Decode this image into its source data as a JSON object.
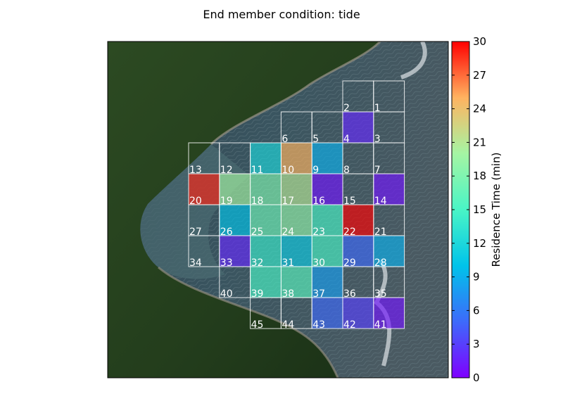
{
  "chart_data": {
    "type": "heatmap",
    "title": "End member condition: tide",
    "colorbar": {
      "label": "Residence Time (min)",
      "range": [
        0,
        30
      ],
      "ticks": [
        0,
        3,
        6,
        9,
        12,
        15,
        18,
        21,
        24,
        27,
        30
      ],
      "colormap": "rainbow",
      "colors": [
        "#7f00ff",
        "#3d6afb",
        "#00c3ea",
        "#49f5c6",
        "#a5f5a3",
        "#ffb360",
        "#ff0000"
      ]
    },
    "background": "satellite image of coastline",
    "grid_columns": 7,
    "grid_rows": 8,
    "cells": [
      {
        "id": "1",
        "row": 0,
        "col": 6,
        "value": null
      },
      {
        "id": "2",
        "row": 0,
        "col": 5,
        "value": null
      },
      {
        "id": "3",
        "row": 1,
        "col": 6,
        "value": null
      },
      {
        "id": "4",
        "row": 1,
        "col": 5,
        "value": 2
      },
      {
        "id": "5",
        "row": 1,
        "col": 4,
        "value": null
      },
      {
        "id": "6",
        "row": 1,
        "col": 3,
        "value": null
      },
      {
        "id": "7",
        "row": 2,
        "col": 6,
        "value": null
      },
      {
        "id": "8",
        "row": 2,
        "col": 5,
        "value": null
      },
      {
        "id": "9",
        "row": 2,
        "col": 4,
        "value": 9
      },
      {
        "id": "10",
        "row": 2,
        "col": 3,
        "value": 25
      },
      {
        "id": "11",
        "row": 2,
        "col": 2,
        "value": 12
      },
      {
        "id": "12",
        "row": 2,
        "col": 1,
        "value": null
      },
      {
        "id": "13",
        "row": 2,
        "col": 0,
        "value": null
      },
      {
        "id": "14",
        "row": 3,
        "col": 6,
        "value": 1
      },
      {
        "id": "15",
        "row": 3,
        "col": 5,
        "value": null
      },
      {
        "id": "16",
        "row": 3,
        "col": 4,
        "value": 1
      },
      {
        "id": "17",
        "row": 3,
        "col": 3,
        "value": 21
      },
      {
        "id": "18",
        "row": 3,
        "col": 2,
        "value": 18
      },
      {
        "id": "19",
        "row": 3,
        "col": 1,
        "value": 20
      },
      {
        "id": "20",
        "row": 3,
        "col": 0,
        "value": 29
      },
      {
        "id": "21",
        "row": 4,
        "col": 6,
        "value": null
      },
      {
        "id": "22",
        "row": 4,
        "col": 5,
        "value": 30
      },
      {
        "id": "23",
        "row": 4,
        "col": 4,
        "value": 15
      },
      {
        "id": "24",
        "row": 4,
        "col": 3,
        "value": 19
      },
      {
        "id": "25",
        "row": 4,
        "col": 2,
        "value": 17
      },
      {
        "id": "26",
        "row": 4,
        "col": 1,
        "value": 10
      },
      {
        "id": "27",
        "row": 4,
        "col": 0,
        "value": null
      },
      {
        "id": "28",
        "row": 5,
        "col": 6,
        "value": 9
      },
      {
        "id": "29",
        "row": 5,
        "col": 5,
        "value": 5
      },
      {
        "id": "30",
        "row": 5,
        "col": 4,
        "value": 15
      },
      {
        "id": "31",
        "row": 5,
        "col": 3,
        "value": 11
      },
      {
        "id": "32",
        "row": 5,
        "col": 2,
        "value": 14
      },
      {
        "id": "33",
        "row": 5,
        "col": 1,
        "value": 2
      },
      {
        "id": "34",
        "row": 5,
        "col": 0,
        "value": null
      },
      {
        "id": "35",
        "row": 6,
        "col": 6,
        "value": null
      },
      {
        "id": "36",
        "row": 6,
        "col": 5,
        "value": null
      },
      {
        "id": "37",
        "row": 6,
        "col": 4,
        "value": 8
      },
      {
        "id": "38",
        "row": 6,
        "col": 3,
        "value": 16
      },
      {
        "id": "39",
        "row": 6,
        "col": 2,
        "value": 15
      },
      {
        "id": "40",
        "row": 6,
        "col": 1,
        "value": null
      },
      {
        "id": "41",
        "row": 7,
        "col": 6,
        "value": 1
      },
      {
        "id": "42",
        "row": 7,
        "col": 5,
        "value": 3
      },
      {
        "id": "43",
        "row": 7,
        "col": 4,
        "value": 5
      },
      {
        "id": "44",
        "row": 7,
        "col": 3,
        "value": null
      },
      {
        "id": "45",
        "row": 7,
        "col": 2,
        "value": null
      }
    ]
  }
}
